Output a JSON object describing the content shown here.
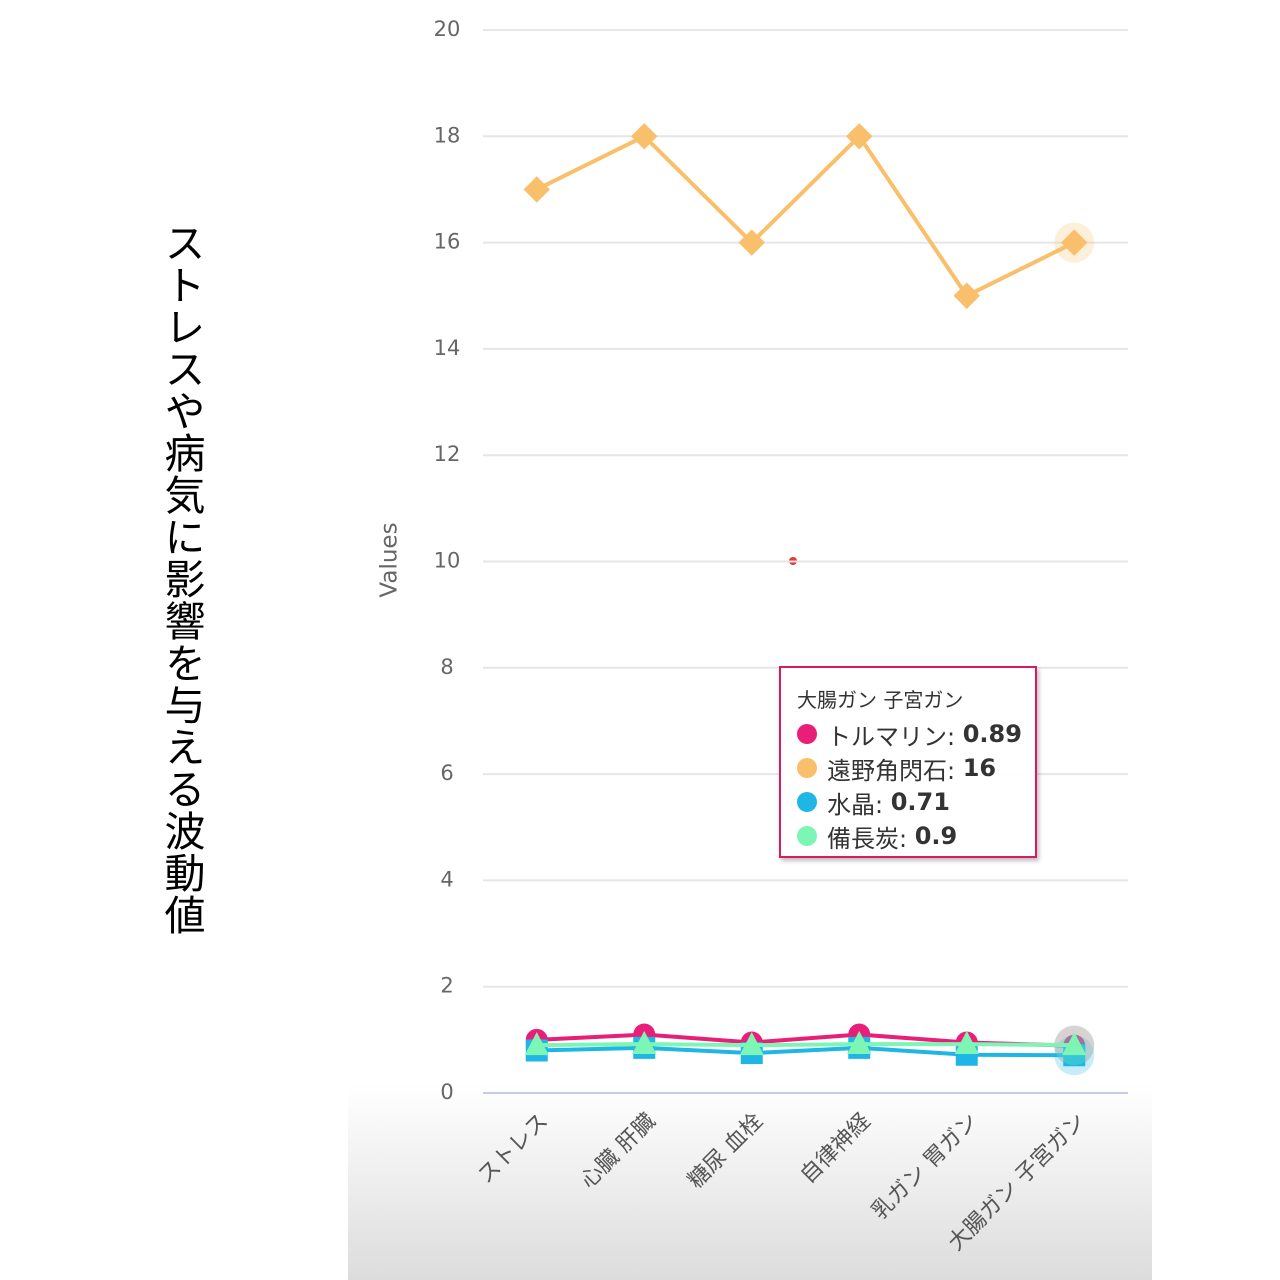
{
  "chart_data": {
    "type": "line",
    "title": "ストレスや病気に影響を与える波動値",
    "y_label": "Values",
    "categories": [
      "ストレス",
      "心臓 肝臓",
      "糖尿 血栓",
      "自律神経",
      "乳ガン 胃ガン",
      "大腸ガン 子宮ガン"
    ],
    "series": [
      {
        "name": "トルマリン",
        "color": "#e91e78",
        "values": [
          1.0,
          1.1,
          0.95,
          1.1,
          0.95,
          0.89
        ]
      },
      {
        "name": "遠野角閃石",
        "color": "#f9bf6b",
        "values": [
          17,
          18,
          16,
          18,
          15,
          16
        ]
      },
      {
        "name": "水晶",
        "color": "#1fb6e6",
        "values": [
          0.8,
          0.85,
          0.75,
          0.85,
          0.72,
          0.71
        ]
      },
      {
        "name": "備長炭",
        "color": "#7df5b4",
        "values": [
          0.9,
          0.92,
          0.9,
          0.92,
          0.92,
          0.9
        ]
      }
    ],
    "ylim": [
      0,
      20
    ],
    "yticks": [
      0,
      2,
      4,
      6,
      8,
      10,
      12,
      14,
      16,
      18,
      20
    ],
    "grid": true
  }
}
